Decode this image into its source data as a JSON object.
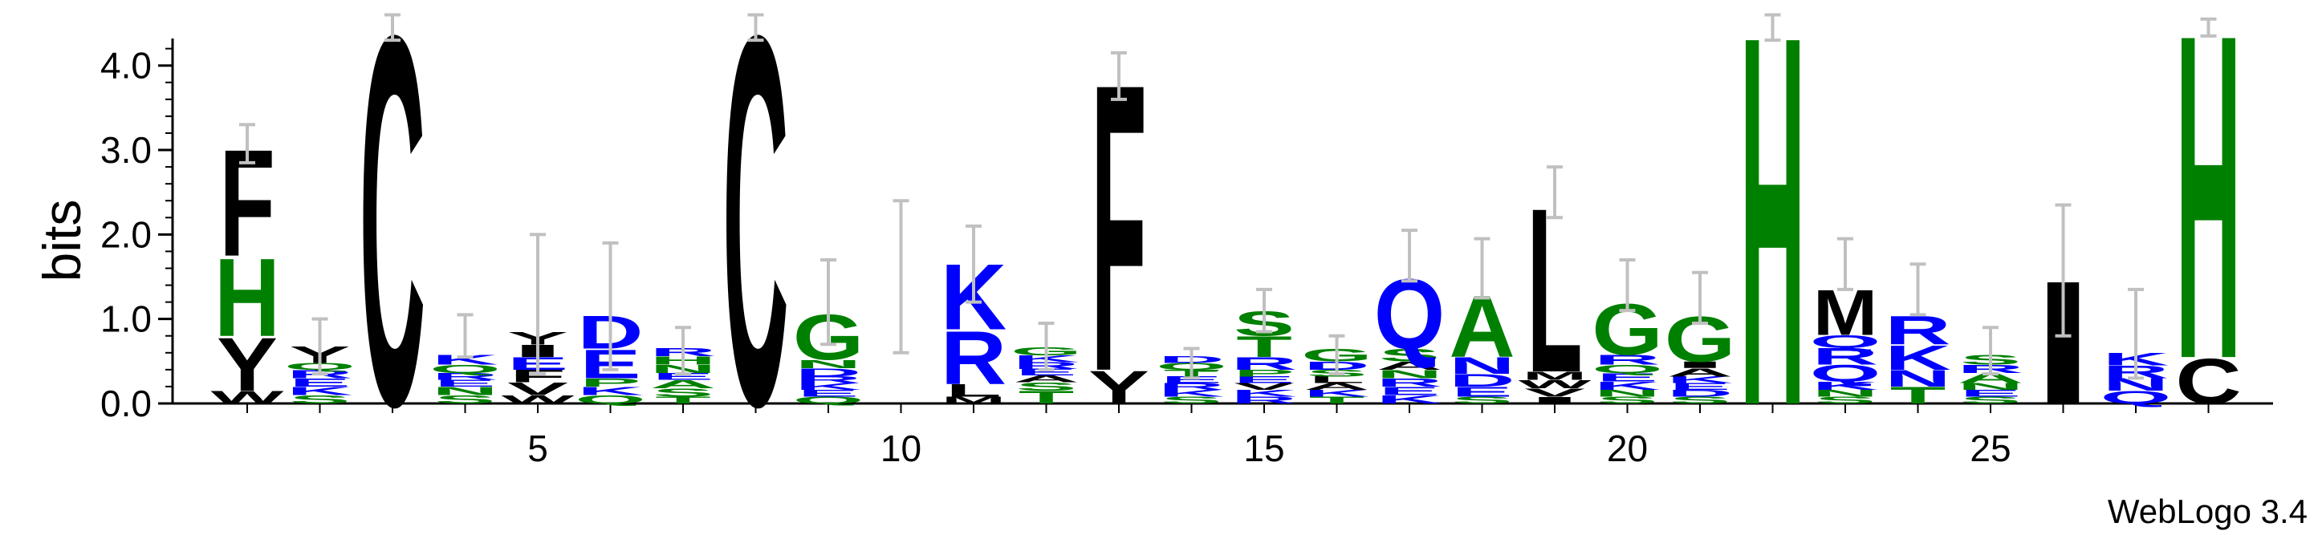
{
  "chart_data": {
    "type": "sequence-logo",
    "ylabel": "bits",
    "ylim": [
      0,
      4.32
    ],
    "yticks": [
      "0.0",
      "1.0",
      "2.0",
      "3.0",
      "4.0"
    ],
    "xticks": [
      5,
      10,
      15,
      20,
      25
    ],
    "credit": "WebLogo 3.4",
    "colors": {
      "hydrophobic": "#000000",
      "polar": "#008000",
      "charged": "#0000ff",
      "errorbar": "#c0c0c0"
    },
    "positions": [
      {
        "pos": 1,
        "stack": [
          [
            "W",
            0.15,
            "hydrophobic"
          ],
          [
            "Y",
            0.65,
            "hydrophobic"
          ],
          [
            "H",
            0.95,
            "polar"
          ],
          [
            "F",
            1.3,
            "hydrophobic"
          ]
        ],
        "err": [
          2.85,
          3.3
        ]
      },
      {
        "pos": 2,
        "stack": [
          [
            "S",
            0.1,
            "polar"
          ],
          [
            "K",
            0.1,
            "charged"
          ],
          [
            "E",
            0.1,
            "charged"
          ],
          [
            "R",
            0.1,
            "charged"
          ],
          [
            "Q",
            0.08,
            "polar"
          ],
          [
            "Y",
            0.2,
            "hydrophobic"
          ]
        ],
        "err": [
          0.35,
          1.0
        ]
      },
      {
        "pos": 3,
        "stack": [
          [
            "C",
            4.5,
            "hydrophobic"
          ]
        ],
        "err": [
          4.3,
          4.6
        ]
      },
      {
        "pos": 4,
        "stack": [
          [
            "S",
            0.1,
            "polar"
          ],
          [
            "N",
            0.1,
            "polar"
          ],
          [
            "E",
            0.08,
            "charged"
          ],
          [
            "R",
            0.08,
            "charged"
          ],
          [
            "Q",
            0.1,
            "polar"
          ],
          [
            "K",
            0.12,
            "charged"
          ]
        ],
        "err": [
          0.55,
          1.05
        ]
      },
      {
        "pos": 5,
        "stack": [
          [
            "W",
            0.1,
            "hydrophobic"
          ],
          [
            "V",
            0.15,
            "hydrophobic"
          ],
          [
            "F",
            0.15,
            "hydrophobic"
          ],
          [
            "E",
            0.15,
            "charged"
          ],
          [
            "I",
            0.15,
            "hydrophobic"
          ],
          [
            "Y",
            0.15,
            "hydrophobic"
          ]
        ],
        "err": [
          0.35,
          2.0
        ]
      },
      {
        "pos": 6,
        "stack": [
          [
            "Q",
            0.1,
            "polar"
          ],
          [
            "K",
            0.1,
            "charged"
          ],
          [
            "P",
            0.1,
            "polar"
          ],
          [
            "E",
            0.35,
            "charged"
          ],
          [
            "D",
            0.4,
            "charged"
          ]
        ],
        "err": [
          0.4,
          1.9
        ]
      },
      {
        "pos": 7,
        "stack": [
          [
            "T",
            0.08,
            "polar"
          ],
          [
            "S",
            0.1,
            "polar"
          ],
          [
            "A",
            0.1,
            "polar"
          ],
          [
            "E",
            0.08,
            "charged"
          ],
          [
            "N",
            0.1,
            "polar"
          ],
          [
            "H",
            0.1,
            "polar"
          ],
          [
            "R",
            0.1,
            "charged"
          ]
        ],
        "err": [
          0.35,
          0.9
        ]
      },
      {
        "pos": 8,
        "stack": [
          [
            "C",
            4.5,
            "hydrophobic"
          ]
        ],
        "err": [
          4.3,
          4.6
        ]
      },
      {
        "pos": 9,
        "stack": [
          [
            "Q",
            0.08,
            "polar"
          ],
          [
            "E",
            0.08,
            "charged"
          ],
          [
            "K",
            0.08,
            "charged"
          ],
          [
            "R",
            0.08,
            "charged"
          ],
          [
            "D",
            0.1,
            "charged"
          ],
          [
            "N",
            0.1,
            "polar"
          ],
          [
            "G",
            0.55,
            "polar"
          ]
        ],
        "err": [
          0.7,
          1.7
        ]
      },
      {
        "pos": 10,
        "stack": [],
        "err": [
          0.6,
          2.4
        ]
      },
      {
        "pos": 11,
        "stack": [
          [
            "M",
            0.08,
            "hydrophobic"
          ],
          [
            "L",
            0.15,
            "hydrophobic"
          ],
          [
            "R",
            0.65,
            "charged"
          ],
          [
            "K",
            0.8,
            "charged"
          ]
        ],
        "err": [
          1.2,
          2.1
        ]
      },
      {
        "pos": 12,
        "stack": [
          [
            "T",
            0.15,
            "polar"
          ],
          [
            "S",
            0.1,
            "polar"
          ],
          [
            "A",
            0.08,
            "hydrophobic"
          ],
          [
            "E",
            0.08,
            "charged"
          ],
          [
            "R",
            0.08,
            "charged"
          ],
          [
            "K",
            0.08,
            "charged"
          ],
          [
            "G",
            0.1,
            "polar"
          ]
        ],
        "err": [
          0.4,
          0.95
        ]
      },
      {
        "pos": 13,
        "stack": [
          [
            "Y",
            0.4,
            "hydrophobic"
          ],
          [
            "F",
            3.5,
            "hydrophobic"
          ]
        ],
        "err": [
          3.6,
          4.15
        ]
      },
      {
        "pos": 14,
        "stack": [
          [
            "S",
            0.08,
            "polar"
          ],
          [
            "K",
            0.08,
            "charged"
          ],
          [
            "R",
            0.08,
            "charged"
          ],
          [
            "E",
            0.08,
            "charged"
          ],
          [
            "T",
            0.08,
            "polar"
          ],
          [
            "Q",
            0.08,
            "polar"
          ],
          [
            "D",
            0.08,
            "charged"
          ]
        ],
        "err": [
          0.3,
          0.65
        ]
      },
      {
        "pos": 15,
        "stack": [
          [
            "R",
            0.08,
            "charged"
          ],
          [
            "K",
            0.08,
            "charged"
          ],
          [
            "V",
            0.08,
            "hydrophobic"
          ],
          [
            "E",
            0.08,
            "charged"
          ],
          [
            "P",
            0.08,
            "polar"
          ],
          [
            "R",
            0.15,
            "charged"
          ],
          [
            "T",
            0.25,
            "polar"
          ],
          [
            "S",
            0.3,
            "polar"
          ]
        ],
        "err": [
          0.85,
          1.35
        ]
      },
      {
        "pos": 16,
        "stack": [
          [
            "T",
            0.08,
            "polar"
          ],
          [
            "K",
            0.08,
            "charged"
          ],
          [
            "A",
            0.08,
            "hydrophobic"
          ],
          [
            "L",
            0.08,
            "hydrophobic"
          ],
          [
            "S",
            0.08,
            "polar"
          ],
          [
            "D",
            0.1,
            "charged"
          ],
          [
            "G",
            0.15,
            "polar"
          ]
        ],
        "err": [
          0.35,
          0.8
        ]
      },
      {
        "pos": 17,
        "stack": [
          [
            "K",
            0.1,
            "charged"
          ],
          [
            "E",
            0.1,
            "charged"
          ],
          [
            "R",
            0.1,
            "charged"
          ],
          [
            "N",
            0.1,
            "polar"
          ],
          [
            "A",
            0.1,
            "hydrophobic"
          ],
          [
            "S",
            0.15,
            "polar"
          ],
          [
            "Q",
            0.85,
            "charged"
          ]
        ],
        "err": [
          1.45,
          2.05
        ]
      },
      {
        "pos": 18,
        "stack": [
          [
            "S",
            0.08,
            "polar"
          ],
          [
            "E",
            0.12,
            "charged"
          ],
          [
            "D",
            0.15,
            "charged"
          ],
          [
            "N",
            0.2,
            "charged"
          ],
          [
            "A",
            0.75,
            "polar"
          ]
        ],
        "err": [
          1.25,
          1.95
        ]
      },
      {
        "pos": 19,
        "stack": [
          [
            "I",
            0.08,
            "hydrophobic"
          ],
          [
            "V",
            0.1,
            "hydrophobic"
          ],
          [
            "W",
            0.1,
            "hydrophobic"
          ],
          [
            "M",
            0.1,
            "hydrophobic"
          ],
          [
            "L",
            2.0,
            "hydrophobic"
          ]
        ],
        "err": [
          2.2,
          2.8
        ]
      },
      {
        "pos": 20,
        "stack": [
          [
            "S",
            0.08,
            "polar"
          ],
          [
            "N",
            0.08,
            "polar"
          ],
          [
            "K",
            0.1,
            "charged"
          ],
          [
            "E",
            0.1,
            "charged"
          ],
          [
            "Q",
            0.1,
            "polar"
          ],
          [
            "R",
            0.12,
            "charged"
          ],
          [
            "G",
            0.62,
            "polar"
          ]
        ],
        "err": [
          1.1,
          1.7
        ]
      },
      {
        "pos": 21,
        "stack": [
          [
            "S",
            0.08,
            "polar"
          ],
          [
            "D",
            0.08,
            "charged"
          ],
          [
            "E",
            0.08,
            "charged"
          ],
          [
            "K",
            0.08,
            "charged"
          ],
          [
            "A",
            0.1,
            "hydrophobic"
          ],
          [
            "I",
            0.08,
            "hydrophobic"
          ],
          [
            "G",
            0.55,
            "polar"
          ]
        ],
        "err": [
          0.95,
          1.55
        ]
      },
      {
        "pos": 22,
        "stack": [
          [
            "H",
            4.5,
            "polar"
          ]
        ],
        "err": [
          4.3,
          4.6
        ]
      },
      {
        "pos": 23,
        "stack": [
          [
            "S",
            0.08,
            "polar"
          ],
          [
            "N",
            0.08,
            "polar"
          ],
          [
            "K",
            0.1,
            "charged"
          ],
          [
            "Q",
            0.2,
            "charged"
          ],
          [
            "R",
            0.2,
            "charged"
          ],
          [
            "Q",
            0.15,
            "charged"
          ],
          [
            "M",
            0.55,
            "hydrophobic"
          ]
        ],
        "err": [
          1.35,
          1.95
        ]
      },
      {
        "pos": 24,
        "stack": [
          [
            "T",
            0.2,
            "polar"
          ],
          [
            "N",
            0.2,
            "charged"
          ],
          [
            "K",
            0.3,
            "charged"
          ],
          [
            "R",
            0.35,
            "charged"
          ]
        ],
        "err": [
          1.05,
          1.65
        ]
      },
      {
        "pos": 25,
        "stack": [
          [
            "S",
            0.08,
            "polar"
          ],
          [
            "E",
            0.08,
            "charged"
          ],
          [
            "N",
            0.08,
            "polar"
          ],
          [
            "A",
            0.12,
            "polar"
          ],
          [
            "R",
            0.1,
            "charged"
          ],
          [
            "S",
            0.12,
            "polar"
          ]
        ],
        "err": [
          0.35,
          0.9
        ]
      },
      {
        "pos": 26,
        "stack": [
          [
            "I",
            1.5,
            "hydrophobic"
          ]
        ],
        "err": [
          0.8,
          2.35
        ]
      },
      {
        "pos": 27,
        "stack": [
          [
            "Q",
            0.15,
            "charged"
          ],
          [
            "N",
            0.15,
            "charged"
          ],
          [
            "R",
            0.15,
            "charged"
          ],
          [
            "K",
            0.15,
            "charged"
          ]
        ],
        "err": [
          0.3,
          1.35
        ]
      },
      {
        "pos": 28,
        "stack": [
          [
            "C",
            0.55,
            "hydrophobic"
          ],
          [
            "H",
            3.95,
            "polar"
          ]
        ],
        "err": [
          4.35,
          4.55
        ]
      }
    ]
  }
}
